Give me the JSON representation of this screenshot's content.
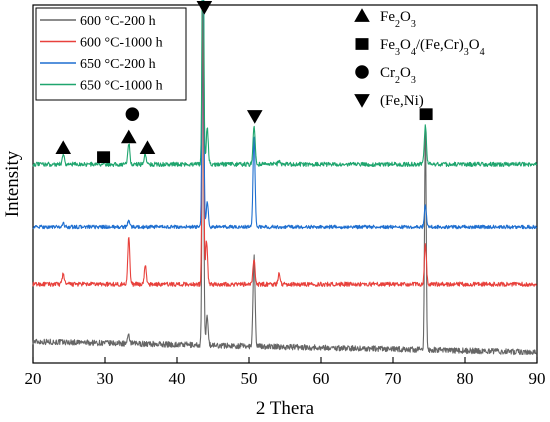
{
  "chart_data": {
    "type": "line",
    "xlabel": "2 Thera",
    "ylabel": "Intensity",
    "xlim": [
      20,
      90
    ],
    "xticks": [
      20,
      30,
      40,
      50,
      60,
      70,
      80,
      90
    ],
    "y_ticks_shown": false,
    "grid": false,
    "legend_placement": "top-left",
    "series": [
      {
        "name": "600 °C-200 h",
        "color": "#666666",
        "baseline": 0.06,
        "slope": -0.03,
        "noise": 0.008,
        "peaks": [
          [
            33.3,
            0.02
          ],
          [
            43.6,
            0.92
          ],
          [
            44.2,
            0.08
          ],
          [
            50.7,
            0.25
          ],
          [
            74.5,
            0.62
          ]
        ]
      },
      {
        "name": "600 °C-1000 h",
        "color": "#e8413c",
        "baseline": 0.22,
        "slope": 0,
        "noise": 0.006,
        "peaks": [
          [
            24.2,
            0.03
          ],
          [
            33.3,
            0.13
          ],
          [
            35.6,
            0.05
          ],
          [
            43.6,
            0.8
          ],
          [
            44.1,
            0.12
          ],
          [
            50.7,
            0.07
          ],
          [
            54.2,
            0.03
          ],
          [
            74.5,
            0.11
          ]
        ]
      },
      {
        "name": "650 °C-200 h",
        "color": "#1f6fd0",
        "baseline": 0.38,
        "slope": 0,
        "noise": 0.005,
        "peaks": [
          [
            24.2,
            0.01
          ],
          [
            33.3,
            0.02
          ],
          [
            43.6,
            0.93
          ],
          [
            44.2,
            0.07
          ],
          [
            50.7,
            0.25
          ],
          [
            74.5,
            0.06
          ]
        ]
      },
      {
        "name": "650 °C-1000 h",
        "color": "#1fa56e",
        "baseline": 0.555,
        "slope": 0,
        "noise": 0.006,
        "peaks": [
          [
            24.2,
            0.03
          ],
          [
            33.3,
            0.06
          ],
          [
            35.6,
            0.03
          ],
          [
            43.6,
            0.78
          ],
          [
            44.2,
            0.1
          ],
          [
            50.7,
            0.11
          ],
          [
            54.2,
            0.01
          ],
          [
            74.5,
            0.11
          ]
        ]
      }
    ],
    "phase_legend": [
      {
        "symbol": "triangle-up",
        "label_parts": [
          "Fe",
          "2",
          "O",
          "3"
        ]
      },
      {
        "symbol": "square",
        "label_parts": [
          "Fe",
          "3",
          "O",
          "4",
          "/(Fe,Cr)",
          "3",
          "O",
          "4"
        ]
      },
      {
        "symbol": "circle",
        "label_parts": [
          "Cr",
          "2",
          "O",
          "3"
        ]
      },
      {
        "symbol": "triangle-down",
        "label_parts": [
          "(Fe,Ni)"
        ]
      }
    ],
    "phase_markers": [
      {
        "symbol": "triangle-up",
        "x": 24.2,
        "y": 0.6
      },
      {
        "symbol": "square",
        "x": 29.8,
        "y": 0.575
      },
      {
        "symbol": "triangle-up",
        "x": 33.3,
        "y": 0.63
      },
      {
        "symbol": "circle",
        "x": 33.8,
        "y": 0.695
      },
      {
        "symbol": "triangle-up",
        "x": 35.9,
        "y": 0.6
      },
      {
        "symbol": "triangle-down",
        "x": 43.8,
        "y": 0.995
      },
      {
        "symbol": "triangle-down",
        "x": 50.8,
        "y": 0.69
      },
      {
        "symbol": "square",
        "x": 74.6,
        "y": 0.695
      }
    ]
  }
}
